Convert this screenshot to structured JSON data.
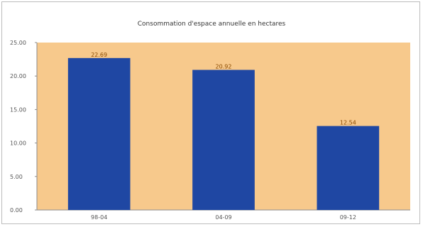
{
  "chart_data": {
    "type": "bar",
    "title": "Consommation d'espace annuelle en hectares",
    "categories": [
      "98-04",
      "04-09",
      "09-12"
    ],
    "values": [
      22.69,
      20.92,
      12.54
    ],
    "value_labels": [
      "22.69",
      "20.92",
      "12.54"
    ],
    "ylim": [
      0,
      25
    ],
    "yticks": [
      "0.00",
      "5.00",
      "10.00",
      "15.00",
      "20.00",
      "25.00"
    ],
    "xlabel": "",
    "ylabel": "",
    "grid": false,
    "legend": "none",
    "colors": {
      "bar": "#1f47a3",
      "plot_background": "#f7c98c",
      "value_label": "#8a4a00"
    }
  }
}
